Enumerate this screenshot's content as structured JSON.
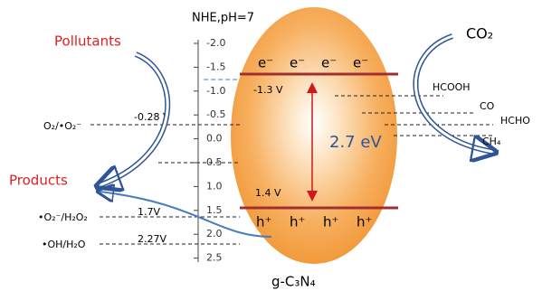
{
  "axis": {
    "title": "NHE,pH=7",
    "ticks": [
      "-2.0",
      "-1.5",
      "-1.0",
      "-0.5",
      "0.0",
      "0.5",
      "1.0",
      "1.5",
      "2.0",
      "2.5"
    ]
  },
  "left": {
    "pollutants": "Pollutants",
    "products": "Products",
    "couples": [
      {
        "label": "O₂/•O₂⁻",
        "potential": "-0.28 V"
      },
      {
        "label": "•O₂⁻/H₂O₂",
        "potential": "1.7V"
      },
      {
        "label": "•OH/H₂O",
        "potential": "2.27V"
      }
    ]
  },
  "semiconductor": {
    "name": "g-C₃N₄",
    "electrons": [
      "e⁻",
      "e⁻",
      "e⁻",
      "e⁻"
    ],
    "holes": [
      "h⁺",
      "h⁺",
      "h⁺",
      "h⁺"
    ],
    "cb": "-1.3 V",
    "vb": "1.4 V",
    "gap": "2.7 eV"
  },
  "right": {
    "reactant": "CO₂",
    "products": [
      "HCOOH",
      "CO",
      "HCHO",
      "CH₄"
    ]
  }
}
